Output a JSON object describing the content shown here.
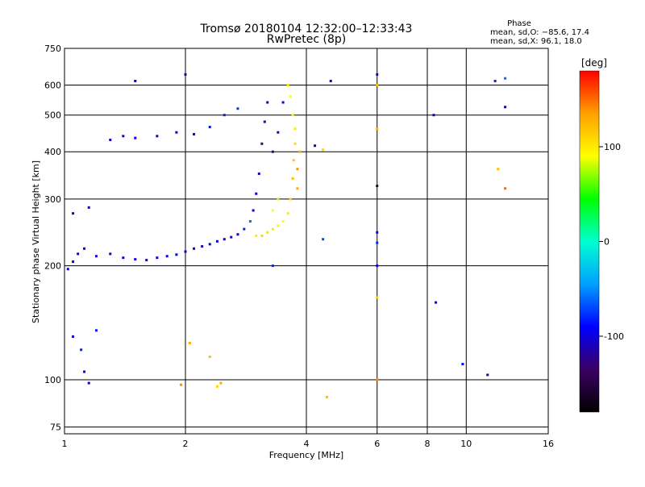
{
  "chart_data": {
    "type": "scatter",
    "title": "Tromsø 20180104  12:32:00–12:33:43",
    "subtitle": "RwPretec (8p)",
    "xlabel": "Frequency [MHz]",
    "ylabel": "Stationary phase Virtual Height [km]",
    "x_scale": "log",
    "y_scale": "log",
    "xlim": [
      1,
      16
    ],
    "ylim": [
      72,
      750
    ],
    "x_ticks": [
      1,
      2,
      4,
      6,
      8,
      10,
      16
    ],
    "y_ticks": [
      75,
      100,
      200,
      300,
      400,
      500,
      600,
      750
    ],
    "grid": true,
    "phase_legend": {
      "heading": "Phase",
      "line1": "mean, sd,O: −85.6, 17.4",
      "line2": "mean, sd,X:  96.1, 18.0"
    },
    "colorbar": {
      "label": "[deg]",
      "range": [
        -180,
        180
      ],
      "ticks": [
        100,
        0,
        -100
      ],
      "colors": [
        "#000000",
        "#3c0064",
        "#0000ff",
        "#00a0ff",
        "#00ffd0",
        "#00ff00",
        "#ffff00",
        "#ffa000",
        "#ff0000"
      ]
    },
    "series": [
      {
        "points": [
          [
            1.02,
            196,
            -95
          ],
          [
            1.05,
            205,
            -90
          ],
          [
            1.08,
            215,
            -100
          ],
          [
            1.12,
            222,
            -95
          ],
          [
            1.2,
            212,
            -105
          ],
          [
            1.3,
            215,
            -100
          ],
          [
            1.4,
            210,
            -95
          ],
          [
            1.5,
            208,
            -100
          ],
          [
            1.6,
            207,
            -105
          ],
          [
            1.7,
            210,
            -95
          ],
          [
            1.8,
            212,
            -100
          ],
          [
            1.9,
            214,
            -90
          ],
          [
            2.0,
            218,
            -100
          ],
          [
            2.1,
            222,
            -95
          ],
          [
            2.2,
            225,
            -100
          ],
          [
            2.3,
            228,
            -95
          ],
          [
            2.4,
            232,
            -100
          ],
          [
            2.5,
            235,
            -90
          ],
          [
            2.6,
            238,
            -100
          ],
          [
            2.7,
            242,
            -90
          ],
          [
            2.8,
            250,
            -80
          ],
          [
            2.9,
            262,
            -60
          ],
          [
            2.95,
            280,
            -90
          ],
          [
            3.0,
            310,
            -100
          ],
          [
            3.05,
            350,
            -120
          ],
          [
            3.1,
            420,
            -130
          ],
          [
            3.15,
            480,
            -125
          ],
          [
            3.2,
            540,
            -120
          ],
          [
            1.3,
            430,
            -100
          ],
          [
            1.4,
            440,
            -100
          ],
          [
            1.5,
            435,
            -95
          ],
          [
            1.7,
            440,
            -100
          ],
          [
            1.9,
            450,
            -95
          ],
          [
            2.1,
            445,
            -90
          ],
          [
            2.3,
            465,
            -85
          ],
          [
            2.5,
            500,
            -80
          ],
          [
            2.7,
            520,
            -75
          ],
          [
            3.3,
            400,
            -110
          ],
          [
            3.4,
            450,
            -100
          ],
          [
            3.5,
            540,
            -105
          ],
          [
            1.05,
            130,
            -90
          ],
          [
            1.1,
            120,
            -80
          ],
          [
            1.12,
            105,
            -95
          ],
          [
            1.15,
            98,
            -100
          ],
          [
            1.2,
            135,
            -85
          ],
          [
            1.05,
            275,
            -100
          ],
          [
            1.15,
            285,
            -110
          ]
        ]
      },
      {
        "points": [
          [
            3.0,
            240,
            100
          ],
          [
            3.1,
            240,
            110
          ],
          [
            3.2,
            245,
            105
          ],
          [
            3.3,
            250,
            100
          ],
          [
            3.4,
            255,
            95
          ],
          [
            3.5,
            262,
            90
          ],
          [
            3.6,
            275,
            100
          ],
          [
            3.65,
            300,
            110
          ],
          [
            3.7,
            340,
            120
          ],
          [
            3.72,
            380,
            115
          ],
          [
            3.75,
            420,
            105
          ],
          [
            3.75,
            460,
            100
          ],
          [
            3.7,
            500,
            95
          ],
          [
            3.65,
            560,
            90
          ],
          [
            3.6,
            600,
            100
          ],
          [
            3.8,
            320,
            130
          ],
          [
            3.8,
            360,
            140
          ],
          [
            3.85,
            400,
            130
          ],
          [
            3.4,
            300,
            80
          ],
          [
            3.3,
            280,
            90
          ]
        ]
      },
      {
        "points": [
          [
            1.5,
            615,
            -100
          ],
          [
            2.0,
            640,
            -110
          ],
          [
            4.2,
            415,
            -95
          ],
          [
            4.4,
            405,
            110
          ],
          [
            4.6,
            615,
            -90
          ],
          [
            6.0,
            640,
            -100
          ],
          [
            6.0,
            600,
            120
          ],
          [
            6.0,
            460,
            130
          ],
          [
            6.0,
            325,
            -150
          ],
          [
            6.0,
            245,
            -100
          ],
          [
            6.0,
            230,
            -80
          ],
          [
            6.0,
            200,
            -100
          ],
          [
            6.0,
            165,
            110
          ],
          [
            6.0,
            100,
            140
          ],
          [
            8.3,
            500,
            -100
          ],
          [
            8.4,
            160,
            -95
          ],
          [
            9.8,
            110,
            -90
          ],
          [
            11.3,
            103,
            -120
          ],
          [
            11.8,
            615,
            -80
          ],
          [
            12.0,
            360,
            120
          ],
          [
            12.5,
            625,
            -60
          ],
          [
            12.5,
            525,
            -90
          ],
          [
            12.5,
            320,
            150
          ],
          [
            4.5,
            90,
            120
          ],
          [
            2.3,
            115,
            120
          ],
          [
            2.4,
            96,
            110
          ],
          [
            1.95,
            97,
            140
          ],
          [
            2.45,
            98,
            130
          ],
          [
            2.05,
            125,
            130
          ],
          [
            3.3,
            200,
            -80
          ],
          [
            4.4,
            235,
            -70
          ]
        ]
      }
    ]
  }
}
